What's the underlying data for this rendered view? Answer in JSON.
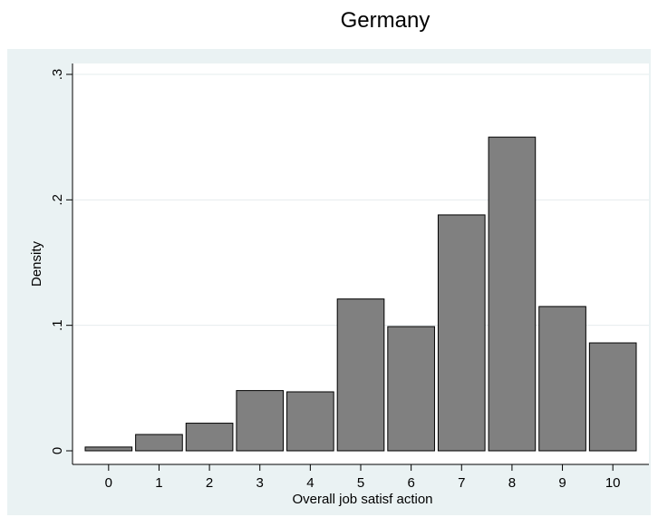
{
  "chart_data": {
    "type": "bar",
    "title": "Germany",
    "xlabel": "Overall job satisf action",
    "ylabel": "Density",
    "categories": [
      "0",
      "1",
      "2",
      "3",
      "4",
      "5",
      "6",
      "7",
      "8",
      "9",
      "10"
    ],
    "values": [
      0.003,
      0.013,
      0.022,
      0.048,
      0.047,
      0.121,
      0.099,
      0.188,
      0.25,
      0.115,
      0.086
    ],
    "ylim": [
      0,
      0.3
    ],
    "yticks": [
      {
        "value": 0,
        "label": "0"
      },
      {
        "value": 0.1,
        "label": ".1"
      },
      {
        "value": 0.2,
        "label": ".2"
      },
      {
        "value": 0.3,
        "label": ".3"
      }
    ],
    "grid": "horizontal",
    "legend": "none",
    "colors": {
      "bar_fill": "#808080",
      "bar_stroke": "#000000",
      "plot_region_background": "#eaf2f3",
      "plot_area_background": "#ffffff",
      "gridline": "#e6ecee"
    }
  }
}
